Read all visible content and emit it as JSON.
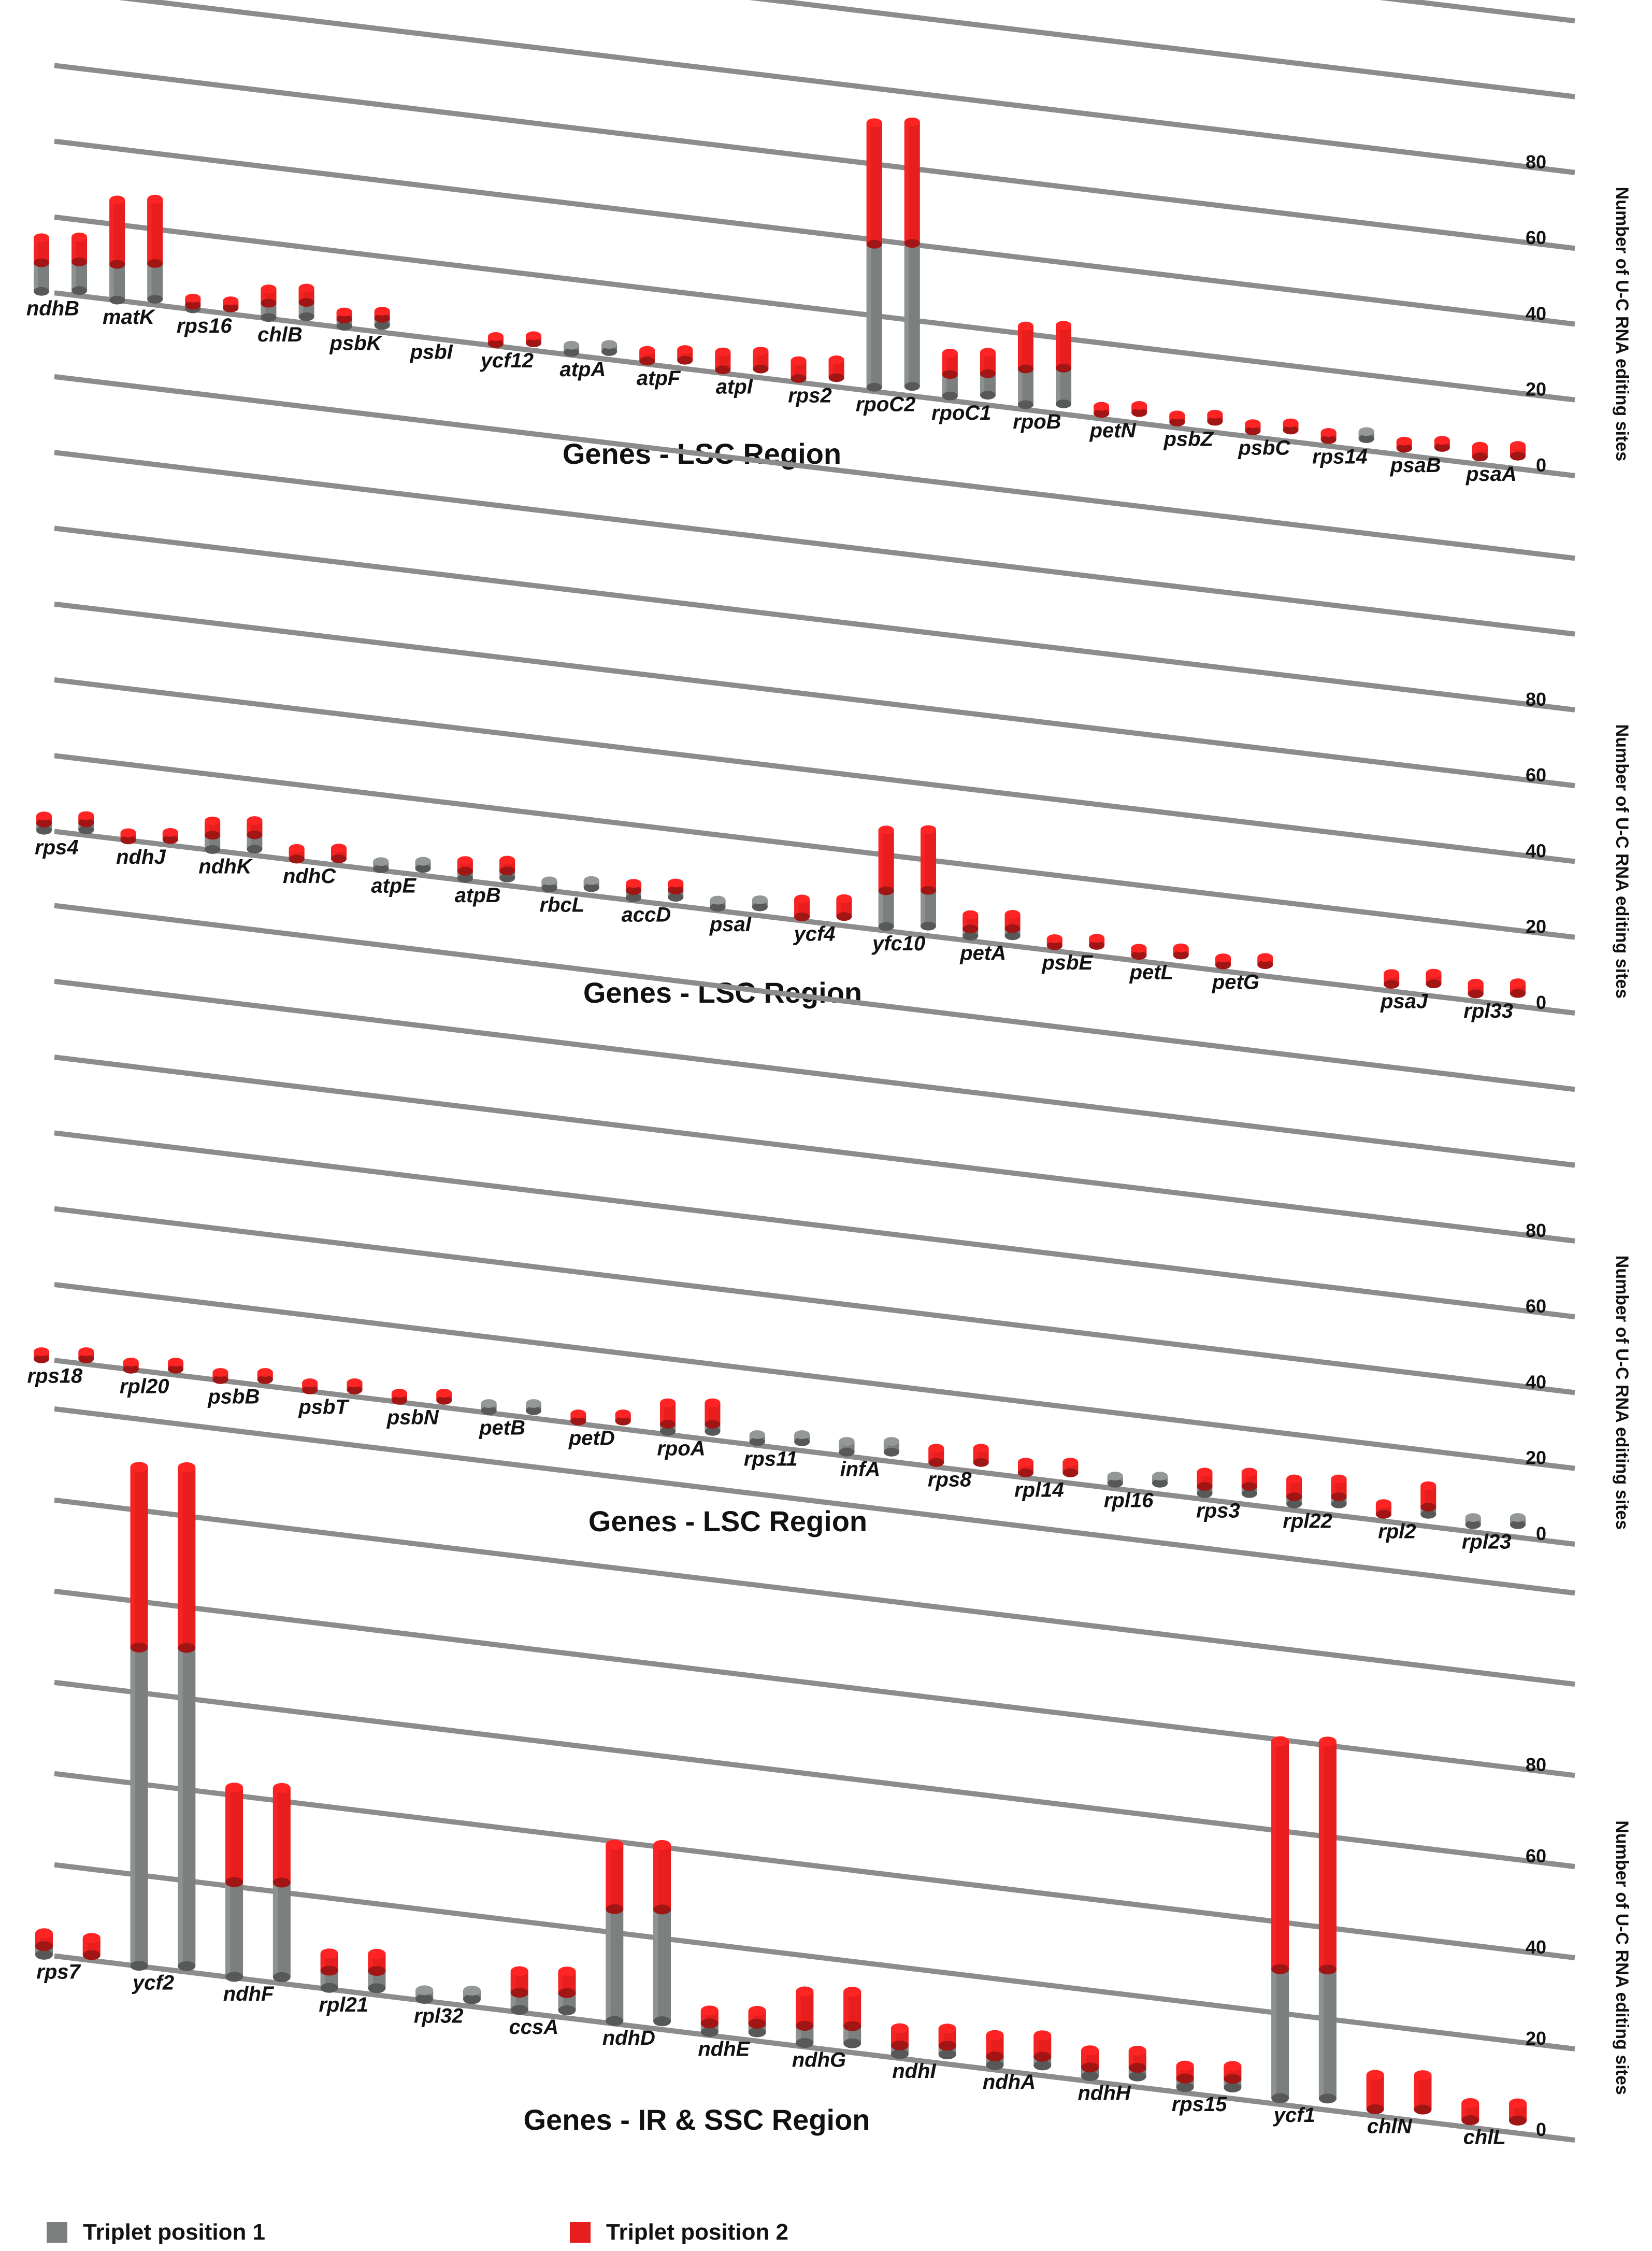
{
  "colors": {
    "position1": "#7b7f7e",
    "position2": "#e81e1e",
    "grid": "#8c8c8c"
  },
  "legend": {
    "position1_label": "Triplet position 1",
    "position2_label": "Triplet position 2"
  },
  "chart_data": [
    {
      "type": "bar",
      "title": "Genes - LSC Region",
      "ylabel": "Number of U-C RNA editing sites",
      "yticks": [
        0,
        20,
        40,
        60,
        80
      ],
      "ylim": [
        0,
        80
      ],
      "grid": true,
      "categories": [
        "ndhB",
        "",
        "matK",
        "",
        "rps16",
        "",
        "chlB",
        "",
        "psbK",
        "",
        "psbI",
        "",
        "ycf12",
        "",
        "atpA",
        "",
        "atpF",
        "",
        "atpI",
        "",
        "rps2",
        "",
        "rpoC2",
        "",
        "rpoC1",
        "",
        "rpoB",
        "",
        "petN",
        "",
        "psbZ",
        "",
        "psbC",
        "",
        "rps14",
        "",
        "psaB",
        "",
        "psaA",
        ""
      ],
      "series": [
        {
          "name": "Triplet position 1",
          "values": [
            8,
            8,
            10,
            10,
            1,
            0,
            4,
            4,
            2,
            2,
            0,
            0,
            0,
            0,
            2,
            2,
            0,
            0,
            0,
            0,
            0,
            0,
            40,
            40,
            6,
            6,
            10,
            10,
            0,
            0,
            0,
            0,
            0,
            0,
            0,
            2,
            0,
            0,
            0,
            0
          ]
        },
        {
          "name": "Triplet position 2",
          "values": [
            7,
            7,
            18,
            18,
            2,
            2,
            4,
            4,
            2,
            2,
            0,
            0,
            2,
            2,
            0,
            0,
            3,
            3,
            5,
            5,
            5,
            5,
            34,
            34,
            6,
            6,
            12,
            12,
            2,
            2,
            2,
            2,
            2,
            2,
            2,
            0,
            2,
            2,
            3,
            3
          ]
        }
      ]
    },
    {
      "type": "bar",
      "title": "Genes - LSC Region",
      "ylabel": "Number of U-C RNA editing sites",
      "yticks": [
        0,
        20,
        40,
        60,
        80
      ],
      "ylim": [
        0,
        80
      ],
      "grid": true,
      "categories": [
        "rps4",
        "",
        "ndhJ",
        "",
        "ndhK",
        "",
        "ndhC",
        "",
        "atpE",
        "",
        "atpB",
        "",
        "rbcL",
        "",
        "accD",
        "",
        "psaI",
        "",
        "ycf4",
        "",
        "yfc10",
        "",
        "petA",
        "",
        "psbE",
        "",
        "petL",
        "",
        "petG",
        "",
        "",
        "",
        "psaJ",
        "",
        "rpl33",
        ""
      ],
      "series": [
        {
          "name": "Triplet position 1",
          "values": [
            2,
            2,
            0,
            0,
            4,
            4,
            0,
            0,
            2,
            2,
            2,
            2,
            2,
            2,
            2,
            2,
            2,
            2,
            0,
            0,
            10,
            10,
            2,
            2,
            0,
            0,
            0,
            0,
            0,
            0,
            0,
            0,
            0,
            0,
            0,
            0
          ]
        },
        {
          "name": "Triplet position 2",
          "values": [
            2,
            2,
            2,
            2,
            4,
            4,
            3,
            3,
            0,
            0,
            3,
            3,
            0,
            0,
            2,
            2,
            0,
            0,
            5,
            5,
            17,
            17,
            4,
            4,
            2,
            2,
            2,
            2,
            2,
            2,
            0,
            0,
            3,
            3,
            3,
            3
          ]
        }
      ]
    },
    {
      "type": "bar",
      "title": "Genes - LSC Region",
      "ylabel": "Number of U-C RNA editing sites",
      "yticks": [
        0,
        20,
        40,
        60,
        80
      ],
      "ylim": [
        0,
        80
      ],
      "grid": true,
      "categories": [
        "rps18",
        "",
        "rpl20",
        "",
        "psbB",
        "",
        "psbT",
        "",
        "psbN",
        "",
        "petB",
        "",
        "petD",
        "",
        "rpoA",
        "",
        "rps11",
        "",
        "infA",
        "",
        "rps8",
        "",
        "rpl14",
        "",
        "rpl16",
        "",
        "rps3",
        "",
        "rpl22",
        "",
        "rpl2",
        "",
        "rpl23",
        ""
      ],
      "series": [
        {
          "name": "Triplet position 1",
          "values": [
            0,
            0,
            0,
            0,
            0,
            0,
            0,
            0,
            0,
            0,
            2,
            2,
            0,
            0,
            2,
            2,
            2,
            2,
            3,
            3,
            0,
            0,
            0,
            0,
            2,
            2,
            2,
            2,
            2,
            2,
            0,
            2,
            2,
            2
          ]
        },
        {
          "name": "Triplet position 2",
          "values": [
            2,
            2,
            2,
            2,
            2,
            2,
            2,
            2,
            2,
            2,
            0,
            0,
            2,
            2,
            6,
            6,
            0,
            0,
            0,
            0,
            4,
            4,
            3,
            3,
            0,
            0,
            4,
            4,
            5,
            5,
            3,
            6,
            0,
            0
          ]
        }
      ]
    },
    {
      "type": "bar",
      "title": "Genes - IR & SSC Region",
      "ylabel": "Number of U-C RNA editing sites",
      "yticks": [
        0,
        20,
        40,
        60,
        80
      ],
      "ylim": [
        0,
        80
      ],
      "grid": true,
      "categories": [
        "rps7",
        "",
        "ycf2",
        "",
        "ndhF",
        "",
        "rpl21",
        "",
        "rpl32",
        "",
        "ccsA",
        "",
        "ndhD",
        "",
        "ndhE",
        "",
        "ndhG",
        "",
        "ndhI",
        "",
        "ndhA",
        "",
        "ndhH",
        "",
        "rps15",
        "",
        "ycf1",
        "",
        "chlN",
        "",
        "chlL",
        ""
      ],
      "series": [
        {
          "name": "Triplet position 1",
          "values": [
            2,
            0,
            74,
            74,
            22,
            22,
            4,
            4,
            2,
            2,
            4,
            4,
            26,
            26,
            2,
            2,
            4,
            4,
            2,
            2,
            2,
            2,
            2,
            2,
            2,
            2,
            30,
            30,
            0,
            0,
            0,
            0
          ]
        },
        {
          "name": "Triplet position 2",
          "values": [
            3,
            4,
            42,
            42,
            22,
            22,
            4,
            4,
            0,
            0,
            5,
            5,
            15,
            15,
            3,
            3,
            8,
            8,
            4,
            4,
            5,
            5,
            4,
            4,
            3,
            3,
            53,
            53,
            8,
            8,
            4,
            4
          ]
        }
      ]
    }
  ]
}
